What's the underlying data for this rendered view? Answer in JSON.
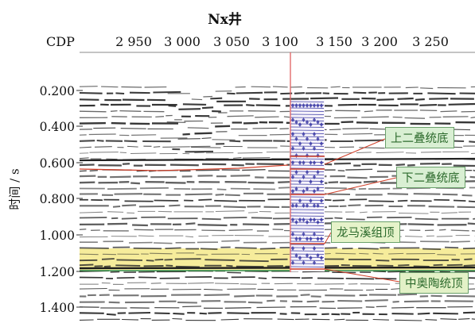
{
  "title": "Nx井",
  "x_axis": {
    "label": "CDP",
    "ticks": [
      "2 950",
      "3 000",
      "3 050",
      "3 100",
      "3 150",
      "3 200",
      "3 250"
    ]
  },
  "y_axis": {
    "label": "时间 / s",
    "ticks": [
      "0.200",
      "0.400",
      "0.600",
      "0.800",
      "1.000",
      "1.200",
      "1.400"
    ]
  },
  "horizons": [
    {
      "label": "上二叠统底",
      "box_color": "#d9efd3"
    },
    {
      "label": "下二叠统底",
      "box_color": "#d9efd3"
    },
    {
      "label": "龙马溪组顶",
      "box_color": "#e6f3ca"
    },
    {
      "label": "中奥陶统顶",
      "box_color": "#e3f1c7"
    }
  ],
  "colors": {
    "horizon_line": "#d0402a",
    "well_line": "#e06060",
    "highlight_band": "#f5e98a",
    "green_line": "#2f8a3a",
    "trace": "#2a2a2a",
    "synthetic_blue": "#3030a0"
  }
}
